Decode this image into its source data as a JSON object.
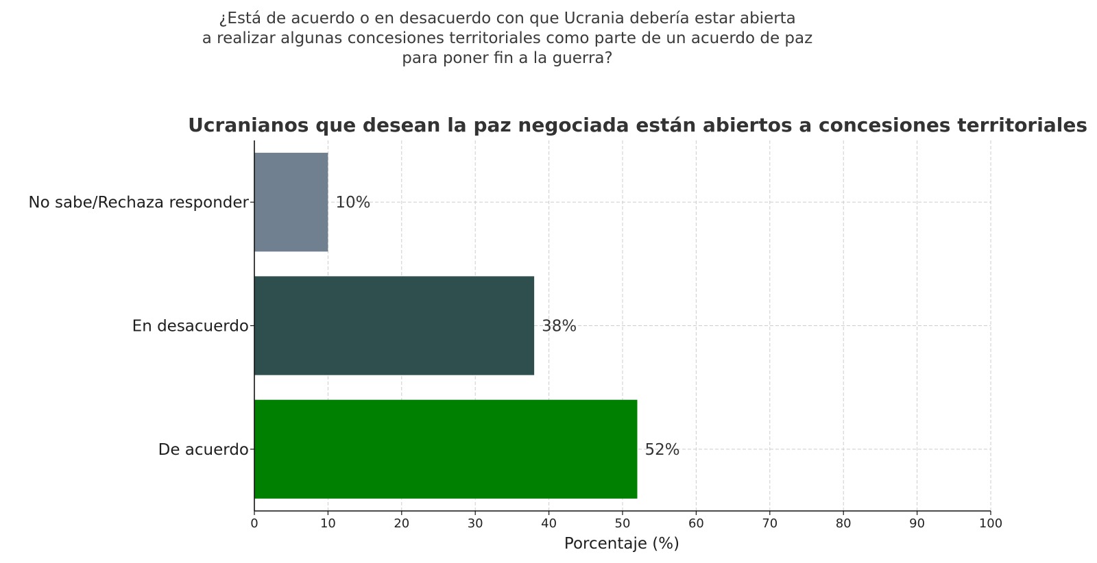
{
  "question": {
    "lines": [
      "¿Está de acuerdo o en desacuerdo con que Ucrania debería estar abierta",
      "a realizar algunas concesiones territoriales como parte de un acuerdo de paz",
      "para poner fin a la guerra?"
    ]
  },
  "chart_data": {
    "type": "bar",
    "orientation": "horizontal",
    "title": "Ucranianos que desean la paz negociada están abiertos a concesiones territoriales",
    "xlabel": "Porcentaje (%)",
    "ylabel": "",
    "categories": [
      "De acuerdo",
      "En desacuerdo",
      "No sabe/Rechaza responder"
    ],
    "values": [
      52,
      38,
      10
    ],
    "value_labels": [
      "52%",
      "38%",
      "10%"
    ],
    "colors": [
      "#008000",
      "#2f4f4f",
      "#708090"
    ],
    "xlim": [
      0,
      100
    ],
    "x_ticks": [
      0,
      10,
      20,
      30,
      40,
      50,
      60,
      70,
      80,
      90,
      100
    ],
    "grid": true,
    "grid_style": "dashed"
  }
}
